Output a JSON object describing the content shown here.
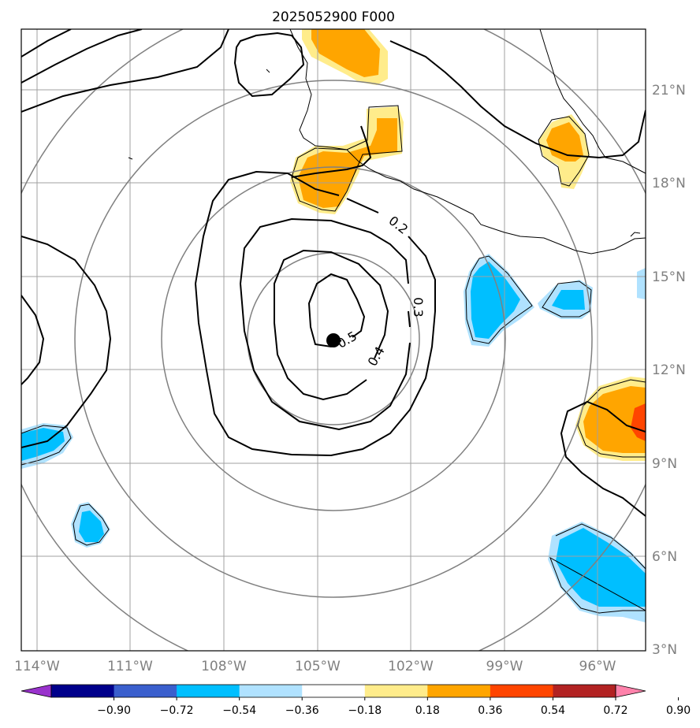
{
  "title": "2025052900 F000",
  "map": {
    "longitude_ticks": [
      "114°W",
      "111°W",
      "108°W",
      "105°W",
      "102°W",
      "99°W",
      "96°W"
    ],
    "latitude_ticks": [
      "21°N",
      "18°N",
      "15°N",
      "12°N",
      "9°N",
      "6°N",
      "3°N"
    ],
    "center_marker": {
      "lon": -104.5,
      "lat": 13.0
    },
    "extent": {
      "lon_min": -114.5,
      "lon_max": -94.5,
      "lat_min": 3.0,
      "lat_max": 23.0
    }
  },
  "contours": {
    "labels": [
      "0.2",
      "0.3",
      "0.4",
      "0.5"
    ]
  },
  "colorbar": {
    "tick_labels": [
      "−0.90",
      "−0.72",
      "−0.54",
      "−0.36",
      "−0.18",
      "0.18",
      "0.36",
      "0.54",
      "0.72",
      "0.90"
    ],
    "colors": [
      "#9932cc",
      "#00008b",
      "#3a5fcd",
      "#00bfff",
      "#b0e2ff",
      "#ffffff",
      "#ffec8b",
      "#ffa500",
      "#ff4500",
      "#b22222",
      "#ff82ab"
    ]
  }
}
